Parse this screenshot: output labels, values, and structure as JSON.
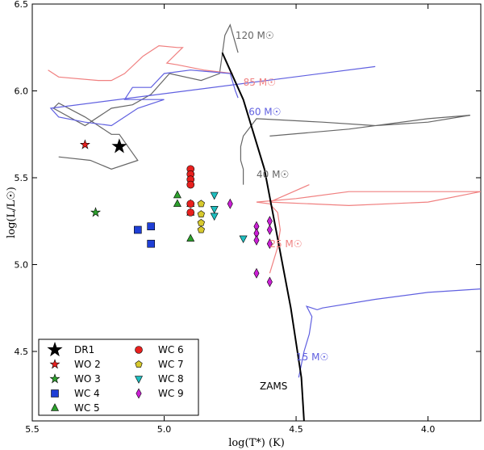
{
  "chart_data": {
    "type": "scatter",
    "xlabel": "log(T*) (K)",
    "ylabel": "log(L/L☉)",
    "xlim": [
      5.5,
      3.8
    ],
    "ylim": [
      4.1,
      6.5
    ],
    "xticks": [
      "5.5",
      "5.0",
      "4.5",
      "4.0"
    ],
    "xtick_values": [
      5.5,
      5.0,
      4.5,
      4.0
    ],
    "yticks": [
      "4.5",
      "5.0",
      "5.5",
      "6.0",
      "6.5"
    ],
    "ytick_values": [
      4.5,
      5.0,
      5.5,
      6.0,
      6.5
    ],
    "legend_position": "bottom-left",
    "series": [
      {
        "name": "DR1",
        "marker": "star",
        "color": "#000000",
        "size": "large",
        "points": [
          [
            5.17,
            5.68
          ]
        ]
      },
      {
        "name": "WO 2",
        "marker": "star",
        "color": "#e8201e",
        "points": [
          [
            5.3,
            5.69
          ]
        ]
      },
      {
        "name": "WO 3",
        "marker": "star",
        "color": "#2ca02c",
        "points": [
          [
            5.26,
            5.3
          ]
        ]
      },
      {
        "name": "WC 4",
        "marker": "square",
        "color": "#1f3fd6",
        "points": [
          [
            5.1,
            5.2
          ],
          [
            5.05,
            5.22
          ],
          [
            5.05,
            5.12
          ]
        ]
      },
      {
        "name": "WC 5",
        "marker": "triangle-up",
        "color": "#2ca02c",
        "points": [
          [
            4.95,
            5.4
          ],
          [
            4.95,
            5.35
          ],
          [
            4.9,
            5.35
          ],
          [
            4.9,
            5.3
          ],
          [
            4.9,
            5.15
          ]
        ]
      },
      {
        "name": "WC 6",
        "marker": "circle",
        "color": "#e8201e",
        "points": [
          [
            4.9,
            5.55
          ],
          [
            4.9,
            5.52
          ],
          [
            4.9,
            5.49
          ],
          [
            4.9,
            5.46
          ],
          [
            4.9,
            5.35
          ],
          [
            4.9,
            5.3
          ]
        ]
      },
      {
        "name": "WC 7",
        "marker": "pentagon",
        "color": "#d7c92e",
        "points": [
          [
            4.86,
            5.35
          ],
          [
            4.86,
            5.29
          ],
          [
            4.86,
            5.24
          ],
          [
            4.86,
            5.2
          ]
        ]
      },
      {
        "name": "WC 8",
        "marker": "triangle-down",
        "color": "#1fbfc0",
        "points": [
          [
            4.81,
            5.4
          ],
          [
            4.81,
            5.32
          ],
          [
            4.81,
            5.28
          ],
          [
            4.7,
            5.15
          ]
        ]
      },
      {
        "name": "WC 9",
        "marker": "diamond",
        "color": "#cc1fd6",
        "points": [
          [
            4.75,
            5.35
          ],
          [
            4.65,
            5.22
          ],
          [
            4.65,
            5.18
          ],
          [
            4.65,
            5.14
          ],
          [
            4.6,
            5.25
          ],
          [
            4.6,
            5.2
          ],
          [
            4.6,
            5.12
          ],
          [
            4.65,
            4.95
          ],
          [
            4.6,
            4.9
          ]
        ]
      }
    ],
    "tracks": [
      {
        "name": "120 M☉",
        "color": "#666666",
        "points": [
          [
            4.72,
            6.22
          ],
          [
            4.75,
            6.38
          ],
          [
            4.77,
            6.32
          ],
          [
            4.79,
            6.1
          ],
          [
            4.86,
            6.06
          ],
          [
            4.98,
            6.1
          ],
          [
            5.05,
            5.98
          ],
          [
            5.12,
            5.92
          ],
          [
            5.2,
            5.9
          ],
          [
            5.3,
            5.8
          ],
          [
            5.42,
            5.9
          ],
          [
            5.4,
            5.93
          ],
          [
            5.3,
            5.85
          ],
          [
            5.25,
            5.8
          ],
          [
            5.2,
            5.75
          ],
          [
            5.17,
            5.75
          ],
          [
            5.1,
            5.6
          ],
          [
            5.2,
            5.55
          ],
          [
            5.28,
            5.6
          ],
          [
            5.4,
            5.62
          ]
        ]
      },
      {
        "name": "85 M☉",
        "color": "#f08080",
        "points": [
          [
            4.74,
            6.1
          ],
          [
            4.85,
            6.12
          ],
          [
            4.95,
            6.15
          ],
          [
            4.99,
            6.16
          ],
          [
            4.93,
            6.25
          ],
          [
            4.95,
            6.25
          ],
          [
            5.02,
            6.26
          ],
          [
            5.08,
            6.2
          ],
          [
            5.15,
            6.1
          ],
          [
            5.2,
            6.06
          ],
          [
            5.25,
            6.06
          ],
          [
            5.4,
            6.08
          ],
          [
            5.44,
            6.12
          ]
        ]
      },
      {
        "name": "60 M☉",
        "color": "#6060e0",
        "points": [
          [
            4.72,
            5.96
          ],
          [
            4.73,
            6.0
          ],
          [
            4.75,
            6.1
          ],
          [
            4.9,
            6.12
          ],
          [
            5.0,
            6.1
          ],
          [
            5.05,
            6.02
          ],
          [
            5.12,
            6.02
          ],
          [
            5.15,
            5.95
          ],
          [
            5.0,
            5.95
          ],
          [
            5.1,
            5.9
          ],
          [
            5.15,
            5.85
          ],
          [
            5.2,
            5.8
          ],
          [
            5.3,
            5.82
          ],
          [
            5.4,
            5.85
          ],
          [
            5.43,
            5.9
          ],
          [
            4.2,
            6.14
          ]
        ]
      },
      {
        "name": "40 M☉",
        "color": "#666666",
        "points": [
          [
            4.7,
            5.46
          ],
          [
            4.7,
            5.55
          ],
          [
            4.71,
            5.6
          ],
          [
            4.71,
            5.68
          ],
          [
            4.7,
            5.74
          ],
          [
            4.65,
            5.84
          ],
          [
            4.4,
            5.82
          ],
          [
            4.2,
            5.8
          ],
          [
            4.0,
            5.82
          ],
          [
            3.84,
            5.86
          ],
          [
            4.0,
            5.84
          ],
          [
            4.3,
            5.78
          ],
          [
            4.6,
            5.74
          ]
        ]
      },
      {
        "name": "25 M☉",
        "color": "#f08080",
        "points": [
          [
            4.6,
            4.95
          ],
          [
            4.57,
            5.1
          ],
          [
            4.56,
            5.2
          ],
          [
            4.57,
            5.3
          ],
          [
            4.6,
            5.35
          ],
          [
            4.65,
            5.36
          ],
          [
            4.5,
            5.38
          ],
          [
            4.3,
            5.42
          ],
          [
            4.0,
            5.42
          ],
          [
            3.8,
            5.42
          ],
          [
            4.0,
            5.36
          ],
          [
            4.3,
            5.34
          ],
          [
            4.6,
            5.36
          ],
          [
            4.45,
            5.46
          ]
        ]
      },
      {
        "name": "15 M☉",
        "color": "#6060e0",
        "points": [
          [
            4.49,
            4.35
          ],
          [
            4.47,
            4.5
          ],
          [
            4.45,
            4.6
          ],
          [
            4.44,
            4.7
          ],
          [
            4.46,
            4.76
          ],
          [
            4.42,
            4.74
          ],
          [
            4.4,
            4.75
          ],
          [
            4.2,
            4.8
          ],
          [
            4.0,
            4.84
          ],
          [
            3.8,
            4.86
          ]
        ]
      }
    ],
    "zams": {
      "label": "ZAMS",
      "points": [
        [
          4.78,
          6.22
        ],
        [
          4.7,
          5.95
        ],
        [
          4.62,
          5.55
        ],
        [
          4.57,
          5.15
        ],
        [
          4.52,
          4.75
        ],
        [
          4.48,
          4.35
        ],
        [
          4.47,
          4.1
        ]
      ]
    },
    "track_labels": [
      {
        "text": "120 M☉",
        "x": 4.73,
        "y": 6.3
      },
      {
        "text": "85 M☉",
        "x": 4.7,
        "y": 6.03
      },
      {
        "text": "60 M☉",
        "x": 4.68,
        "y": 5.86
      },
      {
        "text": "40 M☉",
        "x": 4.65,
        "y": 5.5
      },
      {
        "text": "25 M☉",
        "x": 4.6,
        "y": 5.1
      },
      {
        "text": "15 M☉",
        "x": 4.5,
        "y": 4.45
      }
    ]
  }
}
